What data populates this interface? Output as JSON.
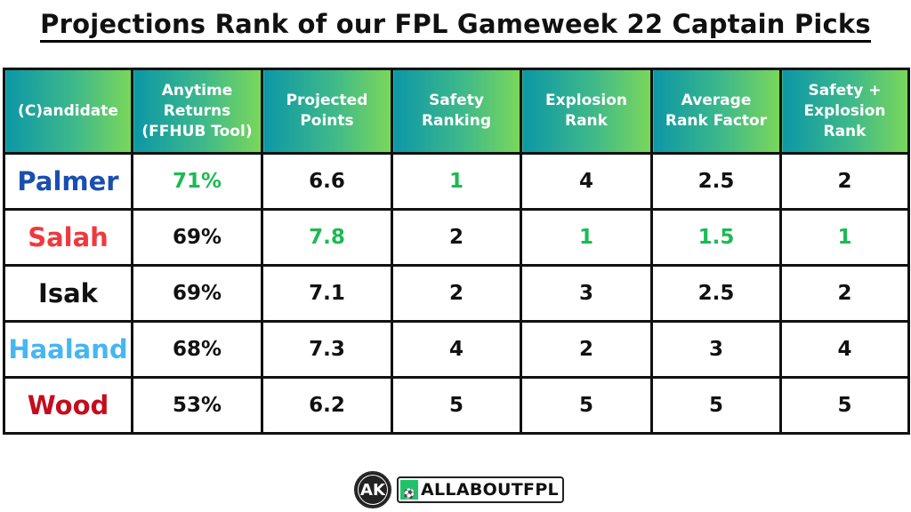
{
  "title": "Projections Rank of our FPL Gameweek 22 Captain Picks",
  "colors": {
    "header_gradient_start": "#0c97a6",
    "header_gradient_end": "#7ad75a",
    "highlight_green": "#1db954",
    "palmer_blue": "#1a4fb0",
    "salah_red": "#f0393f",
    "isak_black": "#111111",
    "haaland_skyblue": "#45b6f3",
    "wood_darkred": "#c40d1e"
  },
  "table": {
    "headers": [
      "(C)andidate",
      "Anytime Returns (FFHUB Tool)",
      "Projected Points",
      "Safety Ranking",
      "Explosion Rank",
      "Average Rank Factor",
      "Safety + Explosion Rank"
    ],
    "header_lines": [
      [
        "(C)andidate"
      ],
      [
        "Anytime",
        "Returns",
        "(FFHUB Tool)"
      ],
      [
        "Projected",
        "Points"
      ],
      [
        "Safety",
        "Ranking"
      ],
      [
        "Explosion",
        "Rank"
      ],
      [
        "Average",
        "Rank Factor"
      ],
      [
        "Safety +",
        "Explosion",
        "Rank"
      ]
    ],
    "rows": [
      {
        "name": "Palmer",
        "name_color": "#1a4fb0",
        "cells": [
          "71%",
          "6.6",
          "1",
          "4",
          "2.5",
          "2"
        ],
        "highlight": [
          true,
          false,
          true,
          false,
          false,
          false
        ]
      },
      {
        "name": "Salah",
        "name_color": "#f0393f",
        "cells": [
          "69%",
          "7.8",
          "2",
          "1",
          "1.5",
          "1"
        ],
        "highlight": [
          false,
          true,
          false,
          true,
          true,
          true
        ]
      },
      {
        "name": "Isak",
        "name_color": "#111111",
        "cells": [
          "69%",
          "7.1",
          "2",
          "3",
          "2.5",
          "2"
        ],
        "highlight": [
          false,
          false,
          false,
          false,
          false,
          false
        ]
      },
      {
        "name": "Haaland",
        "name_color": "#45b6f3",
        "cells": [
          "68%",
          "7.3",
          "4",
          "2",
          "3",
          "4"
        ],
        "highlight": [
          false,
          false,
          false,
          false,
          false,
          false
        ]
      },
      {
        "name": "Wood",
        "name_color": "#c40d1e",
        "cells": [
          "53%",
          "6.2",
          "5",
          "5",
          "5",
          "5"
        ],
        "highlight": [
          false,
          false,
          false,
          false,
          false,
          false
        ]
      }
    ]
  },
  "footer": {
    "ak_logo_text": "AK",
    "brand_icon": "boot-and-ball-icon",
    "brand_text": "ALLABOUTFPL"
  },
  "chart_data": {
    "type": "table",
    "title": "Projections Rank of our FPL Gameweek 22 Captain Picks",
    "columns": [
      "(C)andidate",
      "Anytime Returns (FFHUB Tool)",
      "Projected Points",
      "Safety Ranking",
      "Explosion Rank",
      "Average Rank Factor",
      "Safety + Explosion Rank"
    ],
    "rows": [
      [
        "Palmer",
        "71%",
        6.6,
        1,
        4,
        2.5,
        2
      ],
      [
        "Salah",
        "69%",
        7.8,
        2,
        1,
        1.5,
        1
      ],
      [
        "Isak",
        "69%",
        7.1,
        2,
        3,
        2.5,
        2
      ],
      [
        "Haaland",
        "68%",
        7.3,
        4,
        2,
        3,
        4
      ],
      [
        "Wood",
        "53%",
        6.2,
        5,
        5,
        5,
        5
      ]
    ]
  }
}
